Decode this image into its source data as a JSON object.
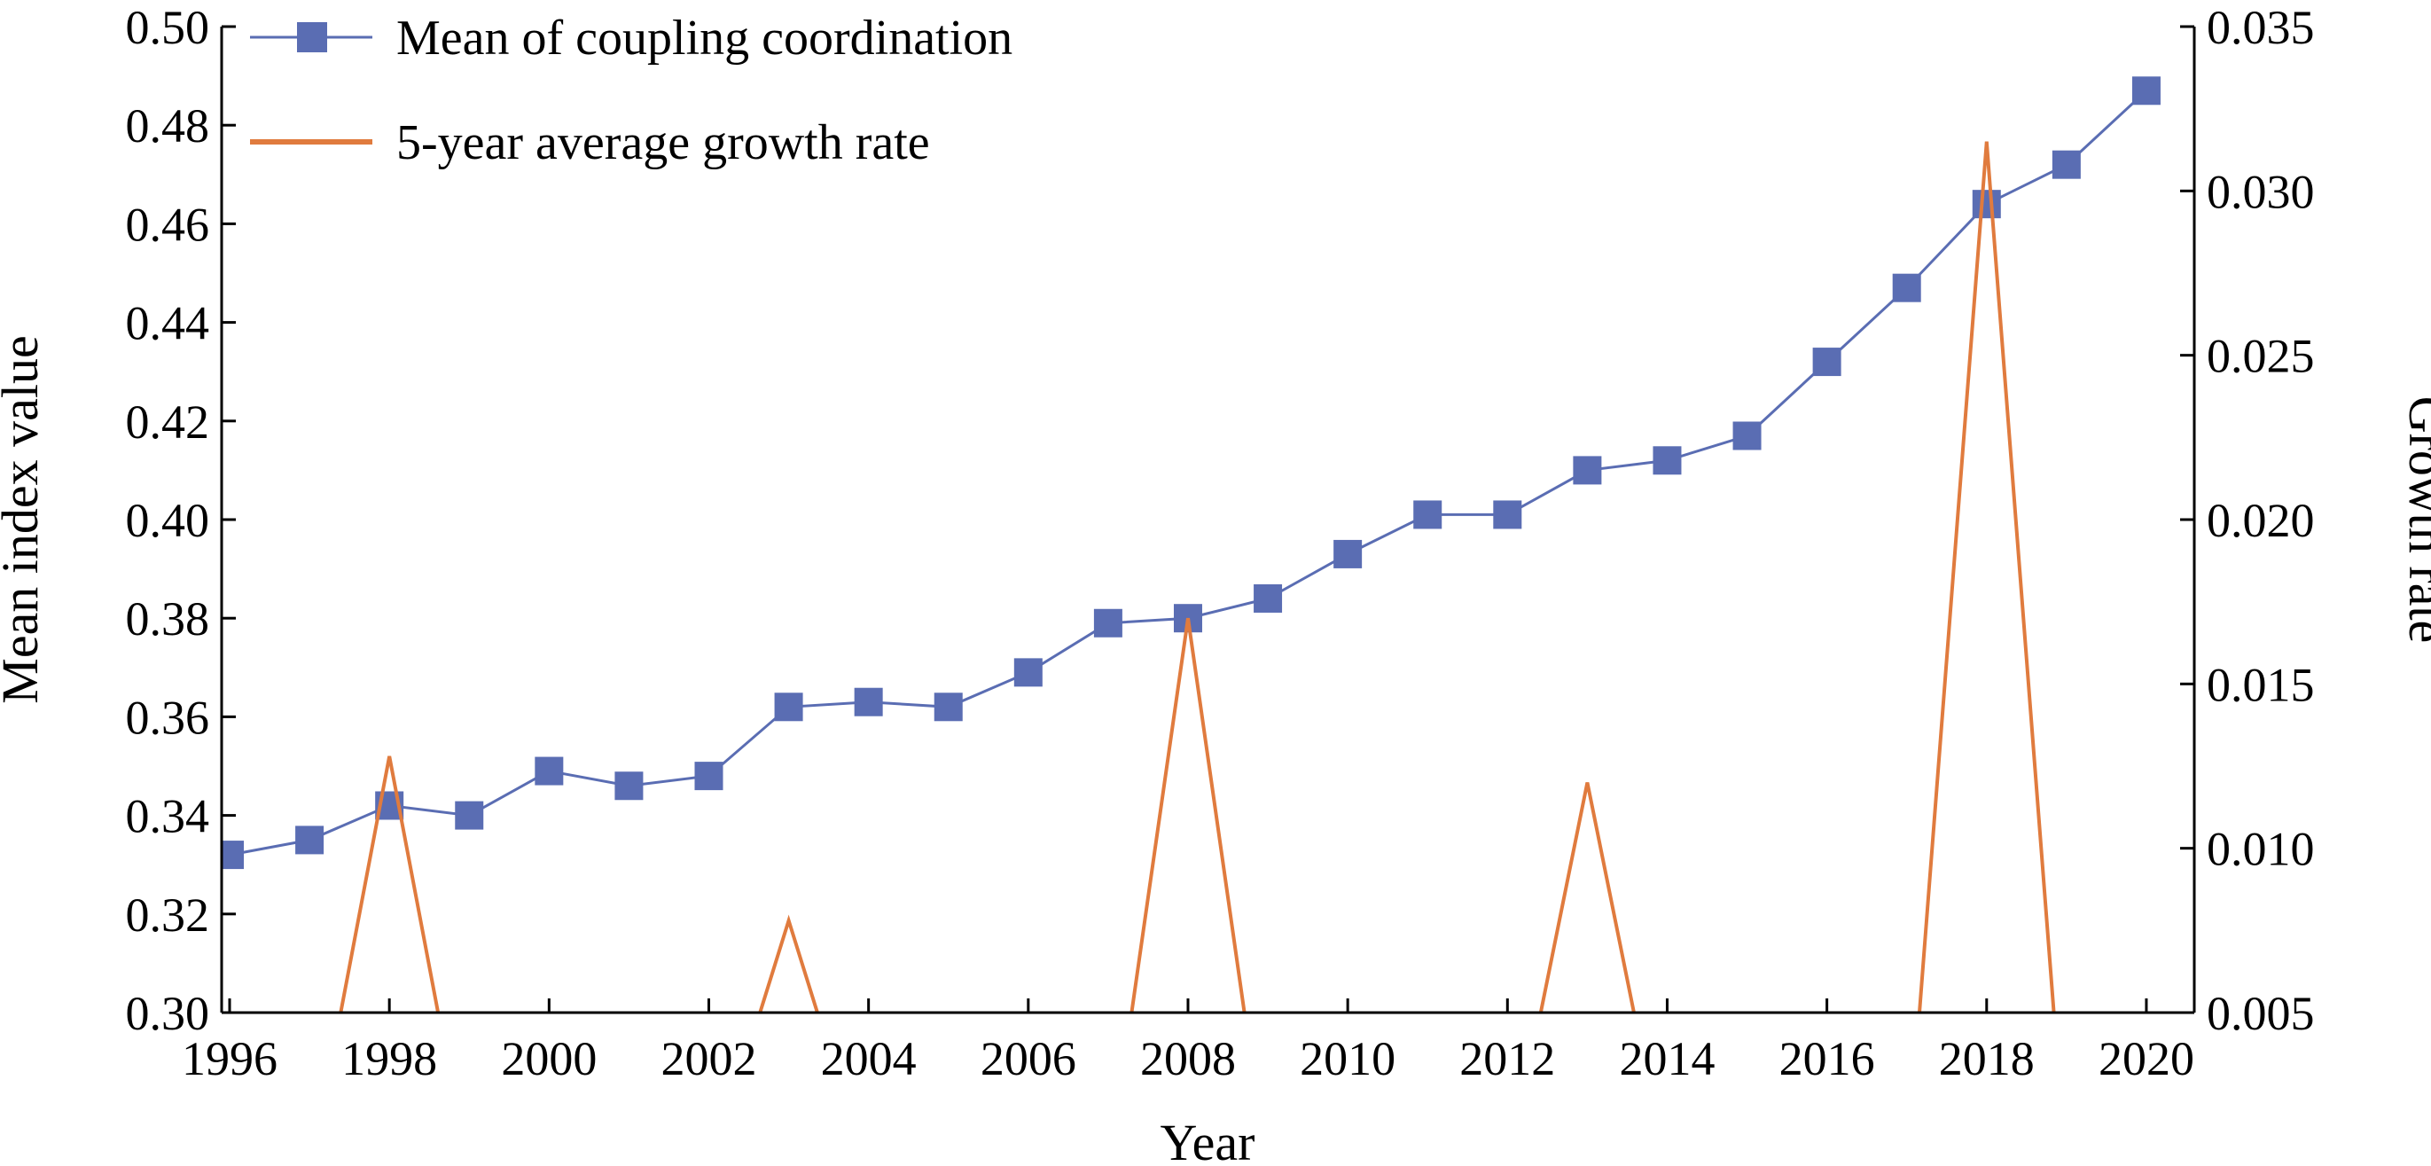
{
  "chart_data": {
    "type": "line",
    "xlabel": "Year",
    "ylabel_left": "Mean index value",
    "ylabel_right": "Growth rate",
    "x": [
      1996,
      1997,
      1998,
      1999,
      2000,
      2001,
      2002,
      2003,
      2004,
      2005,
      2006,
      2007,
      2008,
      2009,
      2010,
      2011,
      2012,
      2013,
      2014,
      2015,
      2016,
      2017,
      2018,
      2019,
      2020
    ],
    "x_ticks": [
      "1996",
      "1998",
      "2000",
      "2002",
      "2004",
      "2006",
      "2008",
      "2010",
      "2012",
      "2014",
      "2016",
      "2018",
      "2020"
    ],
    "y_left_ticks": [
      "0.30",
      "0.32",
      "0.34",
      "0.36",
      "0.38",
      "0.40",
      "0.42",
      "0.44",
      "0.46",
      "0.48",
      "0.50"
    ],
    "y_right_ticks": [
      "0.005",
      "0.010",
      "0.015",
      "0.020",
      "0.025",
      "0.030",
      "0.035"
    ],
    "xlim": [
      1995.9,
      2020.6
    ],
    "ylim_left": [
      0.3,
      0.5
    ],
    "ylim_right": [
      0.005,
      0.035
    ],
    "legend_position": "top-left",
    "grid": false,
    "series": [
      {
        "name": "Mean of coupling coordination",
        "axis": "left",
        "marker": "square",
        "color": "#5a6db3",
        "values": [
          0.332,
          0.335,
          0.342,
          0.34,
          0.349,
          0.346,
          0.348,
          0.362,
          0.363,
          0.362,
          0.369,
          0.379,
          0.38,
          0.384,
          0.393,
          0.401,
          0.401,
          0.41,
          0.412,
          0.417,
          0.432,
          0.447,
          0.464,
          0.472,
          0.487
        ]
      },
      {
        "name": "5-year average growth rate",
        "axis": "right",
        "marker": "none",
        "color": "#e07b3e",
        "values": [
          null,
          0.0,
          0.0128,
          0.0,
          null,
          null,
          0.0,
          0.0078,
          0.0,
          null,
          null,
          0.0,
          0.017,
          0.0,
          null,
          null,
          0.0,
          0.012,
          0.0,
          null,
          null,
          0.0,
          0.0315,
          0.0,
          null
        ]
      }
    ]
  }
}
